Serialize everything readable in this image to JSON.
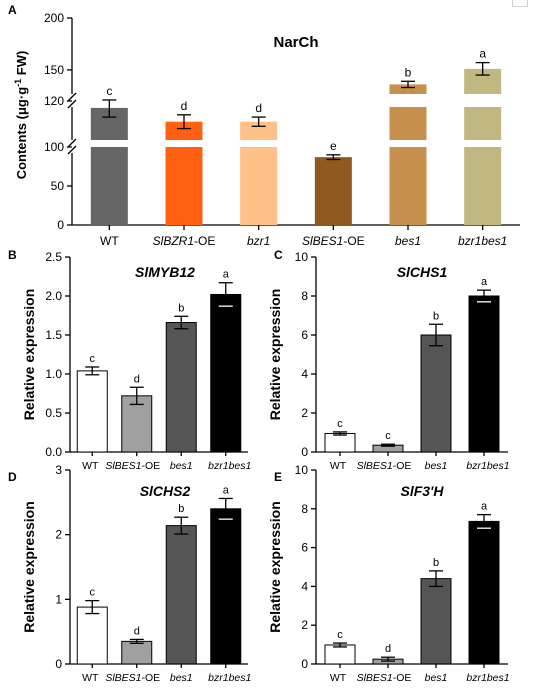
{
  "chart_data": [
    {
      "panel": "A",
      "type": "bar",
      "title": "NarCh",
      "ylabel_parts": [
        "Contents (μg·g",
        "-1",
        " FW)"
      ],
      "categories": [
        "WT",
        "SlBZR1-OE",
        "bzr1",
        "SlBES1-OE",
        "bes1",
        "bzr1bes1"
      ],
      "category_parts": [
        [
          [
            "WT",
            "n"
          ]
        ],
        [
          [
            "SlBZR1",
            "i"
          ],
          [
            "-OE",
            "n"
          ]
        ],
        [
          [
            "bzr1",
            "i"
          ]
        ],
        [
          [
            "SlBES1",
            "i"
          ],
          [
            "-OE",
            "n"
          ]
        ],
        [
          [
            "bes1",
            "i"
          ]
        ],
        [
          [
            "bzr1bes1",
            "i"
          ]
        ]
      ],
      "values": [
        117,
        111,
        111,
        87,
        136,
        151
      ],
      "errors": [
        4,
        3,
        2,
        3,
        3,
        6
      ],
      "letters": [
        "c",
        "d",
        "d",
        "e",
        "b",
        "a"
      ],
      "colors": [
        "#666666",
        "#ff6011",
        "#ffc188",
        "#8e5a1e",
        "#c8904e",
        "#c0b880"
      ],
      "yticks": [
        "200",
        "150",
        "120",
        "100",
        "50",
        "0"
      ],
      "ylim": [
        0,
        200
      ],
      "broken_axis": true
    },
    {
      "panel": "B",
      "type": "bar",
      "title_parts": [
        [
          "SlMYB12",
          "b"
        ]
      ],
      "ylabel": "Relative expression",
      "categories": [
        "WT",
        "SlBES1-OE",
        "bes1",
        "bzr1bes1"
      ],
      "values": [
        1.04,
        0.72,
        1.66,
        2.02
      ],
      "errors": [
        0.05,
        0.11,
        0.08,
        0.15
      ],
      "letters": [
        "c",
        "d",
        "b",
        "a"
      ],
      "yticks": [
        "0.0",
        "0.5",
        "1.0",
        "1.5",
        "2.0",
        "2.5"
      ],
      "ylim": [
        0,
        2.5
      ]
    },
    {
      "panel": "C",
      "type": "bar",
      "title_parts": [
        [
          "SlCHS1",
          "b"
        ]
      ],
      "ylabel": "Relative expression",
      "categories": [
        "WT",
        "SlBES1-OE",
        "bes1",
        "bzr1bes1"
      ],
      "values": [
        0.95,
        0.35,
        6.0,
        8.0
      ],
      "errors": [
        0.08,
        0.05,
        0.55,
        0.3
      ],
      "letters": [
        "c",
        "c",
        "b",
        "a"
      ],
      "yticks": [
        "0",
        "2",
        "4",
        "6",
        "8",
        "10"
      ],
      "ylim": [
        0,
        10
      ]
    },
    {
      "panel": "D",
      "type": "bar",
      "title_parts": [
        [
          "SlCHS2",
          "b"
        ]
      ],
      "ylabel": "Relative expression",
      "categories": [
        "WT",
        "SlBES1-OE",
        "bes1",
        "bzr1bes1"
      ],
      "values": [
        0.88,
        0.35,
        2.14,
        2.4
      ],
      "errors": [
        0.1,
        0.03,
        0.13,
        0.16
      ],
      "letters": [
        "c",
        "d",
        "b",
        "a"
      ],
      "yticks": [
        "0",
        "1",
        "2",
        "3"
      ],
      "ylim": [
        0,
        3
      ]
    },
    {
      "panel": "E",
      "type": "bar",
      "title_parts": [
        [
          "SlF3'H",
          "b"
        ]
      ],
      "ylabel": "Relative expression",
      "categories": [
        "WT",
        "SlBES1-OE",
        "bes1",
        "bzr1bes1"
      ],
      "values": [
        0.98,
        0.25,
        4.4,
        7.35
      ],
      "errors": [
        0.1,
        0.1,
        0.4,
        0.35
      ],
      "letters": [
        "c",
        "d",
        "b",
        "a"
      ],
      "yticks": [
        "0",
        "2",
        "4",
        "6",
        "8",
        "10"
      ],
      "ylim": [
        0,
        10
      ]
    }
  ],
  "small_fills": [
    "#ffffff",
    "#a0a0a0",
    "#555555",
    "#000000"
  ],
  "small_category_parts": [
    [
      [
        "WT",
        "n"
      ]
    ],
    [
      [
        "SlBES1",
        "i"
      ],
      [
        "-OE",
        "n"
      ]
    ],
    [
      [
        "bes1",
        "i"
      ]
    ],
    [
      [
        "bzr1bes1",
        "i"
      ]
    ]
  ]
}
